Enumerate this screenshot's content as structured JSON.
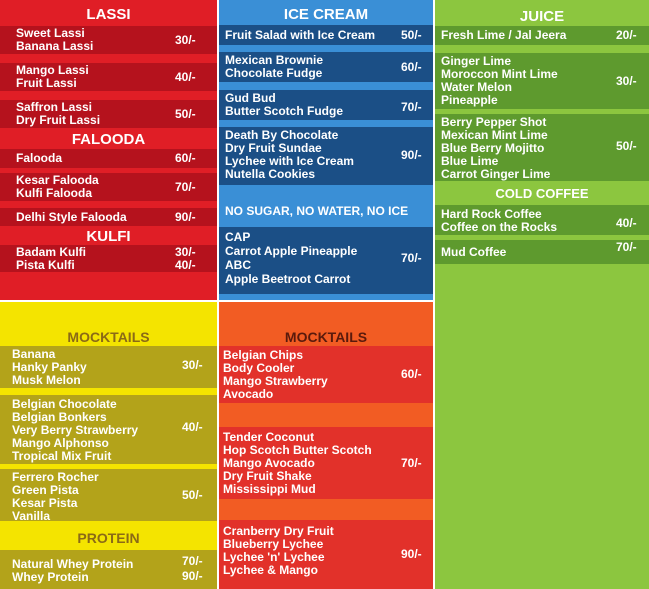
{
  "lassi": {
    "title": "LASSI",
    "blocks": [
      {
        "items": [
          "Sweet Lassi",
          "Banana Lassi"
        ],
        "price": "30/-"
      },
      {
        "items": [
          "Mango Lassi",
          "Fruit Lassi"
        ],
        "price": "40/-"
      },
      {
        "items": [
          "Saffron Lassi",
          "Dry Fruit Lassi"
        ],
        "price": "50/-"
      }
    ]
  },
  "falooda": {
    "title": "FALOODA",
    "blocks": [
      {
        "items": [
          "Falooda"
        ],
        "price": "60/-"
      },
      {
        "items": [
          "Kesar Falooda",
          "Kulfi Falooda"
        ],
        "price": "70/-"
      },
      {
        "items": [
          "Delhi Style Falooda"
        ],
        "price": "90/-"
      }
    ]
  },
  "kulfi": {
    "title": "KULFI",
    "items": [
      "Badam Kulfi",
      "Pista Kulfi"
    ],
    "prices": [
      "30/-",
      "40/-"
    ]
  },
  "ice_cream": {
    "title": "ICE CREAM",
    "blocks": [
      {
        "items": [
          "Fruit Salad with Ice Cream"
        ],
        "price": "50/-"
      },
      {
        "items": [
          "Mexican Brownie",
          "Chocolate Fudge"
        ],
        "price": "60/-"
      },
      {
        "items": [
          "Gud Bud",
          "Butter Scotch Fudge"
        ],
        "price": "70/-"
      },
      {
        "items": [
          "Death By Chocolate",
          "Dry Fruit Sundae",
          "Lychee with Ice Cream",
          "Nutella Cookies"
        ],
        "price": "90/-"
      }
    ],
    "no_sugar_title": "NO SUGAR, NO WATER, NO ICE",
    "no_sugar_block": {
      "items": [
        "CAP",
        "Carrot Apple Pineapple",
        "ABC",
        "Apple Beetroot Carrot"
      ],
      "price": "70/-"
    }
  },
  "juice": {
    "title": "JUICE",
    "blocks": [
      {
        "items": [
          "Fresh Lime / Jal Jeera"
        ],
        "price": "20/-"
      },
      {
        "items": [
          "Ginger Lime",
          "Moroccon Mint Lime",
          "Water Melon",
          "Pineapple"
        ],
        "price": "30/-"
      },
      {
        "items": [
          "Berry Pepper Shot",
          "Mexican Mint Lime",
          "Blue Berry Mojitto",
          "Blue Lime",
          "Carrot Ginger Lime"
        ],
        "price": "50/-"
      }
    ]
  },
  "cold_coffee": {
    "title": "COLD COFFEE",
    "blocks": [
      {
        "items": [
          "Hard Rock Coffee",
          "Coffee on the Rocks"
        ],
        "price": "40/-"
      },
      {
        "items": [
          "Mud Coffee"
        ],
        "price": "70/-"
      }
    ]
  },
  "mocktails_left": {
    "title": "MOCKTAILS",
    "blocks": [
      {
        "items": [
          "Banana",
          "Hanky Panky",
          "Musk Melon"
        ],
        "price": "30/-"
      },
      {
        "items": [
          "Belgian Chocolate",
          "Belgian Bonkers",
          "Very Berry Strawberry",
          "Mango Alphonso",
          "Tropical Mix Fruit"
        ],
        "price": "40/-"
      },
      {
        "items": [
          "Ferrero Rocher",
          "Green Pista",
          "Kesar Pista",
          "Vanilla"
        ],
        "price": "50/-"
      }
    ]
  },
  "protein": {
    "title": "PROTEIN",
    "items": [
      "Natural Whey Protein",
      "Whey Protein"
    ],
    "prices": [
      "70/-",
      "90/-"
    ]
  },
  "mocktails_right": {
    "title": "MOCKTAILS",
    "blocks": [
      {
        "items": [
          "Belgian Chips",
          "Body Cooler",
          "Mango Strawberry",
          "Avocado"
        ],
        "price": "60/-"
      },
      {
        "items": [
          "Tender Coconut",
          "Hop Scotch Butter Scotch",
          "Mango Avocado",
          "Dry Fruit Shake",
          "Mississippi Mud"
        ],
        "price": "70/-"
      },
      {
        "items": [
          "Cranberry Dry Fruit",
          "Blueberry Lychee",
          "Lychee 'n' Lychee",
          "Lychee & Mango"
        ],
        "price": "90/-"
      }
    ]
  },
  "colors": {
    "red": "#e01e26",
    "red_dark": "#b5121d",
    "blue": "#3a8fd6",
    "blue_dark": "#1b4f86",
    "green": "#8cc63f",
    "green_dark": "#5e9a2e",
    "yellow": "#f4e400",
    "yellow_dark": "#b3a31a",
    "orange": "#f25c23",
    "orange_dark": "#e2312a"
  }
}
